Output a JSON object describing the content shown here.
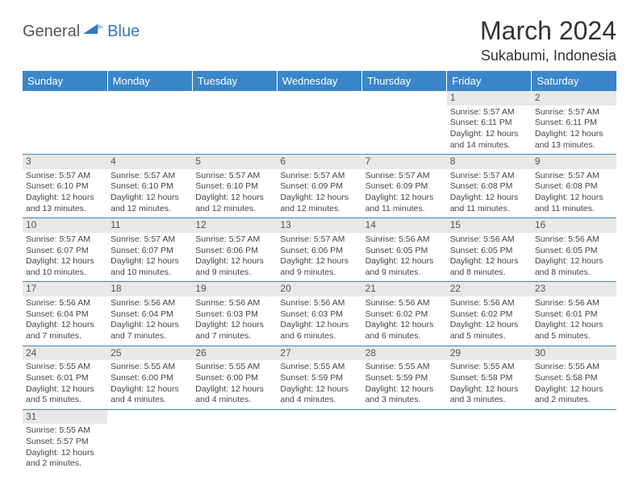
{
  "logo": {
    "general": "General",
    "blue": "Blue"
  },
  "title": {
    "monthYear": "March 2024",
    "location": "Sukabumi, Indonesia"
  },
  "colors": {
    "headerBg": "#3a86c8",
    "headerText": "#ffffff",
    "border": "#3a86c8",
    "dayNumBg": "#e8e8e8"
  },
  "weekdays": [
    "Sunday",
    "Monday",
    "Tuesday",
    "Wednesday",
    "Thursday",
    "Friday",
    "Saturday"
  ],
  "weeks": [
    [
      null,
      null,
      null,
      null,
      null,
      {
        "n": "1",
        "sunrise": "Sunrise: 5:57 AM",
        "sunset": "Sunset: 6:11 PM",
        "daylight": "Daylight: 12 hours and 14 minutes."
      },
      {
        "n": "2",
        "sunrise": "Sunrise: 5:57 AM",
        "sunset": "Sunset: 6:11 PM",
        "daylight": "Daylight: 12 hours and 13 minutes."
      }
    ],
    [
      {
        "n": "3",
        "sunrise": "Sunrise: 5:57 AM",
        "sunset": "Sunset: 6:10 PM",
        "daylight": "Daylight: 12 hours and 13 minutes."
      },
      {
        "n": "4",
        "sunrise": "Sunrise: 5:57 AM",
        "sunset": "Sunset: 6:10 PM",
        "daylight": "Daylight: 12 hours and 12 minutes."
      },
      {
        "n": "5",
        "sunrise": "Sunrise: 5:57 AM",
        "sunset": "Sunset: 6:10 PM",
        "daylight": "Daylight: 12 hours and 12 minutes."
      },
      {
        "n": "6",
        "sunrise": "Sunrise: 5:57 AM",
        "sunset": "Sunset: 6:09 PM",
        "daylight": "Daylight: 12 hours and 12 minutes."
      },
      {
        "n": "7",
        "sunrise": "Sunrise: 5:57 AM",
        "sunset": "Sunset: 6:09 PM",
        "daylight": "Daylight: 12 hours and 11 minutes."
      },
      {
        "n": "8",
        "sunrise": "Sunrise: 5:57 AM",
        "sunset": "Sunset: 6:08 PM",
        "daylight": "Daylight: 12 hours and 11 minutes."
      },
      {
        "n": "9",
        "sunrise": "Sunrise: 5:57 AM",
        "sunset": "Sunset: 6:08 PM",
        "daylight": "Daylight: 12 hours and 11 minutes."
      }
    ],
    [
      {
        "n": "10",
        "sunrise": "Sunrise: 5:57 AM",
        "sunset": "Sunset: 6:07 PM",
        "daylight": "Daylight: 12 hours and 10 minutes."
      },
      {
        "n": "11",
        "sunrise": "Sunrise: 5:57 AM",
        "sunset": "Sunset: 6:07 PM",
        "daylight": "Daylight: 12 hours and 10 minutes."
      },
      {
        "n": "12",
        "sunrise": "Sunrise: 5:57 AM",
        "sunset": "Sunset: 6:06 PM",
        "daylight": "Daylight: 12 hours and 9 minutes."
      },
      {
        "n": "13",
        "sunrise": "Sunrise: 5:57 AM",
        "sunset": "Sunset: 6:06 PM",
        "daylight": "Daylight: 12 hours and 9 minutes."
      },
      {
        "n": "14",
        "sunrise": "Sunrise: 5:56 AM",
        "sunset": "Sunset: 6:05 PM",
        "daylight": "Daylight: 12 hours and 9 minutes."
      },
      {
        "n": "15",
        "sunrise": "Sunrise: 5:56 AM",
        "sunset": "Sunset: 6:05 PM",
        "daylight": "Daylight: 12 hours and 8 minutes."
      },
      {
        "n": "16",
        "sunrise": "Sunrise: 5:56 AM",
        "sunset": "Sunset: 6:05 PM",
        "daylight": "Daylight: 12 hours and 8 minutes."
      }
    ],
    [
      {
        "n": "17",
        "sunrise": "Sunrise: 5:56 AM",
        "sunset": "Sunset: 6:04 PM",
        "daylight": "Daylight: 12 hours and 7 minutes."
      },
      {
        "n": "18",
        "sunrise": "Sunrise: 5:56 AM",
        "sunset": "Sunset: 6:04 PM",
        "daylight": "Daylight: 12 hours and 7 minutes."
      },
      {
        "n": "19",
        "sunrise": "Sunrise: 5:56 AM",
        "sunset": "Sunset: 6:03 PM",
        "daylight": "Daylight: 12 hours and 7 minutes."
      },
      {
        "n": "20",
        "sunrise": "Sunrise: 5:56 AM",
        "sunset": "Sunset: 6:03 PM",
        "daylight": "Daylight: 12 hours and 6 minutes."
      },
      {
        "n": "21",
        "sunrise": "Sunrise: 5:56 AM",
        "sunset": "Sunset: 6:02 PM",
        "daylight": "Daylight: 12 hours and 6 minutes."
      },
      {
        "n": "22",
        "sunrise": "Sunrise: 5:56 AM",
        "sunset": "Sunset: 6:02 PM",
        "daylight": "Daylight: 12 hours and 5 minutes."
      },
      {
        "n": "23",
        "sunrise": "Sunrise: 5:56 AM",
        "sunset": "Sunset: 6:01 PM",
        "daylight": "Daylight: 12 hours and 5 minutes."
      }
    ],
    [
      {
        "n": "24",
        "sunrise": "Sunrise: 5:55 AM",
        "sunset": "Sunset: 6:01 PM",
        "daylight": "Daylight: 12 hours and 5 minutes."
      },
      {
        "n": "25",
        "sunrise": "Sunrise: 5:55 AM",
        "sunset": "Sunset: 6:00 PM",
        "daylight": "Daylight: 12 hours and 4 minutes."
      },
      {
        "n": "26",
        "sunrise": "Sunrise: 5:55 AM",
        "sunset": "Sunset: 6:00 PM",
        "daylight": "Daylight: 12 hours and 4 minutes."
      },
      {
        "n": "27",
        "sunrise": "Sunrise: 5:55 AM",
        "sunset": "Sunset: 5:59 PM",
        "daylight": "Daylight: 12 hours and 4 minutes."
      },
      {
        "n": "28",
        "sunrise": "Sunrise: 5:55 AM",
        "sunset": "Sunset: 5:59 PM",
        "daylight": "Daylight: 12 hours and 3 minutes."
      },
      {
        "n": "29",
        "sunrise": "Sunrise: 5:55 AM",
        "sunset": "Sunset: 5:58 PM",
        "daylight": "Daylight: 12 hours and 3 minutes."
      },
      {
        "n": "30",
        "sunrise": "Sunrise: 5:55 AM",
        "sunset": "Sunset: 5:58 PM",
        "daylight": "Daylight: 12 hours and 2 minutes."
      }
    ],
    [
      {
        "n": "31",
        "sunrise": "Sunrise: 5:55 AM",
        "sunset": "Sunset: 5:57 PM",
        "daylight": "Daylight: 12 hours and 2 minutes."
      },
      null,
      null,
      null,
      null,
      null,
      null
    ]
  ]
}
